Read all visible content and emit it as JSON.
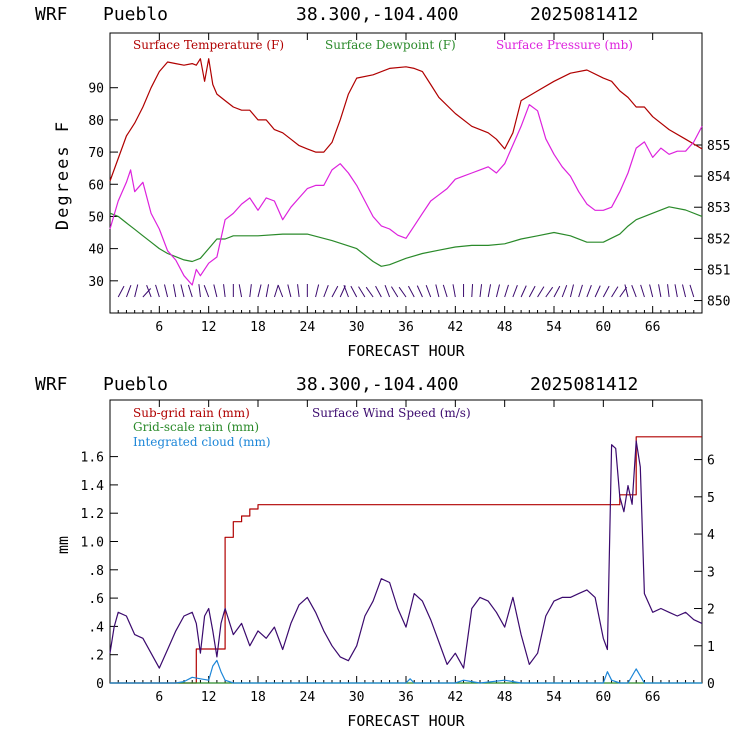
{
  "chart_data": [
    {
      "type": "line",
      "header": {
        "model": "WRF",
        "station": "Pueblo",
        "coords": "38.300,-104.400",
        "run": "2025081412"
      },
      "xlabel": "FORECAST HOUR",
      "ylabel": "Degrees F",
      "xlim": [
        0,
        72
      ],
      "xticks": [
        6,
        12,
        18,
        24,
        30,
        36,
        42,
        48,
        54,
        60,
        66
      ],
      "ylim": [
        20,
        107
      ],
      "yticks": [
        30,
        40,
        50,
        60,
        70,
        80,
        90
      ],
      "y2lim": [
        849.6,
        858.6
      ],
      "y2ticks": [
        850,
        851,
        852,
        853,
        854,
        855
      ],
      "series": [
        {
          "name": "Surface Temperature (F)",
          "color": "#b00000",
          "axis": "left",
          "x": [
            0,
            1,
            2,
            3,
            4,
            5,
            6,
            7,
            8,
            9,
            10,
            10.5,
            11,
            11.5,
            12,
            12.5,
            13,
            14,
            15,
            16,
            17,
            18,
            19,
            20,
            21,
            22,
            23,
            24,
            25,
            26,
            27,
            28,
            29,
            30,
            32,
            34,
            36,
            37,
            38,
            39,
            40,
            42,
            44,
            46,
            47,
            48,
            49,
            50,
            52,
            54,
            56,
            58,
            60,
            61,
            62,
            63,
            64,
            65,
            66,
            68,
            70,
            72
          ],
          "values": [
            61,
            68,
            75,
            79,
            84,
            90,
            95,
            98,
            97.5,
            97,
            97.5,
            97,
            99,
            92,
            99,
            91,
            88,
            86,
            84,
            83,
            83,
            80,
            80,
            77,
            76,
            74,
            72,
            71,
            70,
            70,
            73,
            80,
            88,
            93,
            94,
            96,
            96.5,
            96,
            95,
            91,
            87,
            82,
            78,
            76,
            74,
            71,
            76,
            86,
            89,
            92,
            94.5,
            95.5,
            93,
            92,
            89,
            87,
            84,
            84,
            81,
            77,
            74,
            71
          ]
        },
        {
          "name": "Surface Dewpoint (F)",
          "color": "#2a8a2a",
          "axis": "left",
          "x": [
            0,
            1,
            2,
            3,
            4,
            5,
            6,
            7,
            8,
            9,
            10,
            11,
            12,
            13,
            14,
            15,
            18,
            21,
            24,
            27,
            30,
            32,
            33,
            34,
            36,
            38,
            40,
            42,
            44,
            46,
            48,
            50,
            52,
            54,
            56,
            58,
            60,
            62,
            63,
            64,
            66,
            68,
            70,
            72
          ],
          "values": [
            51,
            50,
            48,
            46,
            44,
            42,
            40,
            38.5,
            37.5,
            36.5,
            36,
            37,
            40,
            43,
            43,
            44,
            44,
            44.5,
            44.5,
            42.5,
            40,
            36,
            34.5,
            35,
            37,
            38.5,
            39.5,
            40.5,
            41,
            41,
            41.5,
            43,
            44,
            45,
            44,
            42,
            42,
            44.5,
            47,
            49,
            51,
            53,
            52,
            50
          ]
        },
        {
          "name": "Surface Pressure (mb)",
          "color": "#dd22dd",
          "axis": "right",
          "x": [
            0,
            1,
            2,
            2.5,
            3,
            4,
            5,
            6,
            7,
            8,
            9,
            10,
            10.5,
            11,
            12,
            13,
            14,
            15,
            16,
            17,
            18,
            19,
            20,
            21,
            22,
            23,
            24,
            25,
            26,
            27,
            28,
            29,
            30,
            31,
            32,
            33,
            34,
            35,
            36,
            37,
            38,
            39,
            40,
            41,
            42,
            43,
            44,
            45,
            46,
            47,
            48,
            49,
            50,
            51,
            52,
            53,
            54,
            55,
            56,
            57,
            58,
            59,
            60,
            61,
            62,
            63,
            64,
            65,
            66,
            67,
            68,
            69,
            70,
            71,
            72
          ],
          "values": [
            852.3,
            853.2,
            853.8,
            854.2,
            853.5,
            853.8,
            852.8,
            852.3,
            851.6,
            851.3,
            850.8,
            850.5,
            851,
            850.8,
            851.2,
            851.4,
            852.6,
            852.8,
            853.1,
            853.3,
            852.9,
            853.3,
            853.2,
            852.6,
            853,
            853.3,
            853.6,
            853.7,
            853.7,
            854.2,
            854.4,
            854.1,
            853.7,
            853.2,
            852.7,
            852.4,
            852.3,
            852.1,
            852,
            852.4,
            852.8,
            853.2,
            853.4,
            853.6,
            853.9,
            854,
            854.1,
            854.2,
            854.3,
            854.1,
            854.4,
            855,
            855.6,
            856.3,
            856.1,
            855.2,
            854.7,
            854.3,
            854,
            853.5,
            853.1,
            852.9,
            852.9,
            853,
            853.5,
            854.1,
            854.9,
            855.1,
            854.6,
            854.9,
            854.7,
            854.8,
            854.8,
            855.1,
            855.6
          ]
        }
      ]
    },
    {
      "type": "line",
      "header": {
        "model": "WRF",
        "station": "Pueblo",
        "coords": "38.300,-104.400",
        "run": "2025081412"
      },
      "xlabel": "FORECAST HOUR",
      "ylabel": "mm",
      "xlim": [
        0,
        72
      ],
      "xticks": [
        6,
        12,
        18,
        24,
        30,
        36,
        42,
        48,
        54,
        60,
        66
      ],
      "ylim": [
        0,
        2.0
      ],
      "yticks": [
        0,
        0.2,
        0.4,
        0.6,
        0.8,
        1.0,
        1.2,
        1.4,
        1.6
      ],
      "yticklabels": [
        "0",
        ".2",
        ".4",
        ".6",
        ".8",
        "1.0",
        "1.2",
        "1.4",
        "1.6"
      ],
      "y2lim": [
        0,
        7.6
      ],
      "y2ticks": [
        0,
        1,
        2,
        3,
        4,
        5,
        6
      ],
      "series": [
        {
          "name": "Sub-grid rain (mm)",
          "color": "#b00000",
          "axis": "left",
          "x": [
            0,
            10.5,
            10.5,
            14,
            14,
            15,
            15,
            16,
            16,
            17,
            17,
            18,
            18,
            62,
            62,
            64,
            64,
            72
          ],
          "values": [
            0,
            0,
            0.24,
            0.24,
            1.03,
            1.03,
            1.14,
            1.14,
            1.18,
            1.18,
            1.23,
            1.23,
            1.26,
            1.26,
            1.33,
            1.33,
            1.74,
            1.74
          ]
        },
        {
          "name": "Grid-scale rain (mm)",
          "color": "#2a8a2a",
          "axis": "left",
          "x": [
            0,
            72
          ],
          "values": [
            0,
            0
          ]
        },
        {
          "name": "Integrated cloud (mm)",
          "color": "#1c86d8",
          "axis": "left",
          "x": [
            0,
            8,
            9,
            10,
            11,
            12,
            12.5,
            13,
            13.5,
            14,
            15,
            20,
            36,
            36.5,
            37,
            40,
            42,
            43,
            44,
            45,
            48,
            50,
            59,
            60,
            60.5,
            61,
            62,
            63,
            64,
            64.5,
            65,
            72
          ],
          "values": [
            0,
            0,
            0.01,
            0.04,
            0.03,
            0.02,
            0.12,
            0.16,
            0.08,
            0.02,
            0,
            0,
            0,
            0.03,
            0,
            0,
            0,
            0.02,
            0.01,
            0,
            0.02,
            0,
            0,
            0,
            0.08,
            0.02,
            0,
            0,
            0.1,
            0.05,
            0,
            0
          ]
        },
        {
          "name": "Surface Wind Speed (m/s)",
          "color": "#3b0a6e",
          "axis": "right",
          "x": [
            0,
            0.5,
            1,
            2,
            3,
            4,
            5,
            6,
            7,
            8,
            9,
            10,
            10.5,
            11,
            11.5,
            12,
            12.5,
            13,
            13.5,
            14,
            15,
            16,
            17,
            18,
            19,
            20,
            21,
            22,
            23,
            24,
            25,
            26,
            27,
            28,
            29,
            30,
            31,
            32,
            33,
            34,
            35,
            36,
            37,
            38,
            39,
            40,
            41,
            42,
            43,
            44,
            45,
            46,
            47,
            48,
            49,
            50,
            51,
            52,
            53,
            54,
            55,
            56,
            57,
            58,
            59,
            60,
            60.5,
            61,
            61.5,
            62,
            62.5,
            63,
            63.5,
            64,
            64.5,
            65,
            66,
            67,
            68,
            69,
            70,
            71,
            72
          ],
          "values": [
            0.8,
            1.5,
            1.9,
            1.8,
            1.3,
            1.2,
            0.8,
            0.4,
            0.9,
            1.4,
            1.8,
            1.9,
            1.6,
            0.8,
            1.8,
            2.0,
            1.4,
            0.7,
            1.6,
            2.0,
            1.3,
            1.6,
            1.0,
            1.4,
            1.2,
            1.5,
            0.9,
            1.6,
            2.1,
            2.3,
            1.9,
            1.4,
            1.0,
            0.7,
            0.6,
            1.0,
            1.8,
            2.2,
            2.8,
            2.7,
            2.0,
            1.5,
            2.4,
            2.2,
            1.7,
            1.1,
            0.5,
            0.8,
            0.4,
            2.0,
            2.3,
            2.2,
            1.9,
            1.5,
            2.3,
            1.3,
            0.5,
            0.8,
            1.8,
            2.2,
            2.3,
            2.3,
            2.4,
            2.5,
            2.3,
            1.2,
            0.9,
            6.4,
            6.3,
            5.0,
            4.6,
            5.3,
            4.8,
            6.5,
            5.8,
            2.4,
            1.9,
            2.0,
            1.9,
            1.8,
            1.9,
            1.7,
            1.6
          ]
        }
      ]
    }
  ]
}
